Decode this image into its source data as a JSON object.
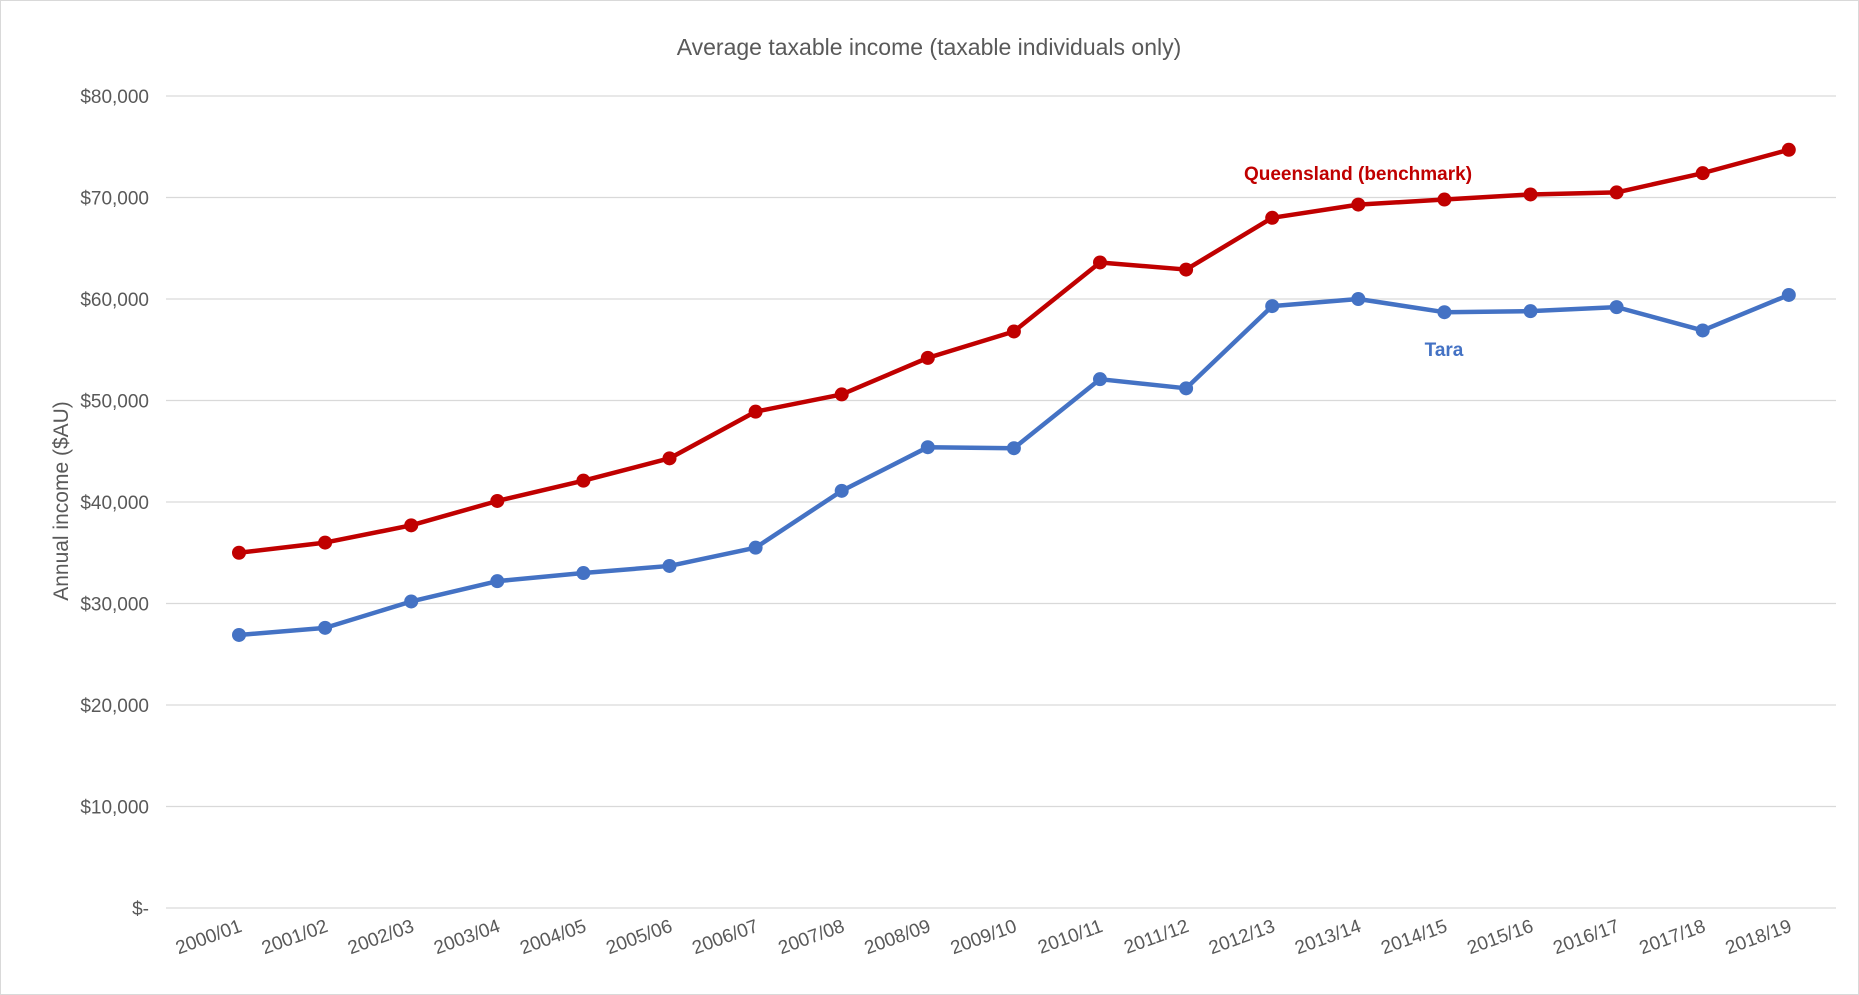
{
  "chart_data": {
    "type": "line",
    "title": "Average taxable income (taxable individuals only)",
    "xlabel": "",
    "ylabel": "Annual income ($AU)",
    "ylim": [
      0,
      80000
    ],
    "yticks": [
      0,
      10000,
      20000,
      30000,
      40000,
      50000,
      60000,
      70000,
      80000
    ],
    "ytick_labels": [
      "$-",
      "$10,000",
      "$20,000",
      "$30,000",
      "$40,000",
      "$50,000",
      "$60,000",
      "$70,000",
      "$80,000"
    ],
    "grid": true,
    "categories": [
      "2000/01",
      "2001/02",
      "2002/03",
      "2003/04",
      "2004/05",
      "2005/06",
      "2006/07",
      "2007/08",
      "2008/09",
      "2009/10",
      "2010/11",
      "2011/12",
      "2012/13",
      "2013/14",
      "2014/15",
      "2015/16",
      "2016/17",
      "2017/18",
      "2018/19"
    ],
    "series": [
      {
        "name": "Queensland (benchmark)",
        "color": "#c00000",
        "values": [
          35000,
          36000,
          37700,
          40100,
          42100,
          44300,
          48900,
          50600,
          54200,
          56800,
          63600,
          62900,
          68000,
          69300,
          69800,
          70300,
          70500,
          72400,
          74700
        ]
      },
      {
        "name": "Tara",
        "color": "#4472c4",
        "values": [
          26900,
          27600,
          30200,
          32200,
          33000,
          33700,
          35500,
          41100,
          45400,
          45300,
          52100,
          51200,
          59300,
          60000,
          58700,
          58800,
          59200,
          56900,
          60400
        ]
      }
    ]
  }
}
